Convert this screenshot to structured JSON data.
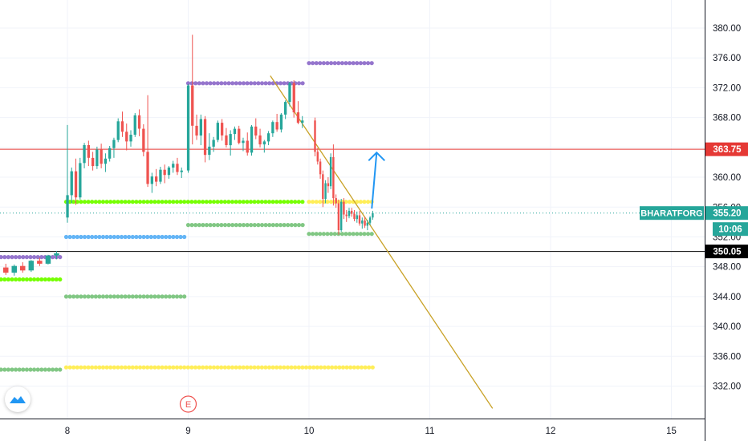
{
  "colors": {
    "up": "#26a69a",
    "down": "#ef5350",
    "grid": "#f0f3fa",
    "axis_text": "#131722",
    "purple": "#9575cd",
    "green_bright": "#76ff03",
    "green_dull": "#81c784",
    "blue": "#64b5f6",
    "yellow": "#ffee58",
    "trendline": "#c9a227",
    "resistance": "#e53935",
    "support": "#000000",
    "arrow": "#2196f3",
    "label_teal": "#26a69a",
    "earnings": "#ef5350"
  },
  "chart_data": {
    "type": "candlestick",
    "symbol": "BHARATFORG",
    "ylim": [
      329,
      383
    ],
    "y_ticks": [
      332,
      336,
      340,
      344,
      348,
      352,
      356,
      360,
      364,
      368,
      372,
      376,
      380
    ],
    "x_ticks": [
      "8",
      "9",
      "10",
      "11",
      "12",
      "15"
    ],
    "grid": true,
    "candles_session_7": [
      [
        346.6,
        347.4,
        345.8,
        346.9
      ],
      [
        346.9,
        347.2,
        345.6,
        345.9
      ],
      [
        345.9,
        347.0,
        345.4,
        346.7
      ],
      [
        346.7,
        347.3,
        346.1,
        346.3
      ],
      [
        346.3,
        347.5,
        345.9,
        347.2
      ],
      [
        347.2,
        347.6,
        346.0,
        346.4
      ],
      [
        346.4,
        348.1,
        346.2,
        347.9
      ],
      [
        347.9,
        348.4,
        346.9,
        347.2
      ],
      [
        347.2,
        348.3,
        346.8,
        348.1
      ],
      [
        348.1,
        348.6,
        347.2,
        347.5
      ],
      [
        347.5,
        348.9,
        347.3,
        348.8
      ],
      [
        348.8,
        349.2,
        348.1,
        348.4
      ],
      [
        348.4,
        349.6,
        348.3,
        349.5
      ],
      [
        349.5,
        350.1,
        349.0,
        349.8
      ]
    ],
    "candles_session_8": [
      [
        354.6,
        367.0,
        353.9,
        357.6
      ],
      [
        357.6,
        361.3,
        356.5,
        360.8
      ],
      [
        360.8,
        362.5,
        356.3,
        357.3
      ],
      [
        357.3,
        362.6,
        357.0,
        361.9
      ],
      [
        361.9,
        364.6,
        361.2,
        364.3
      ],
      [
        364.3,
        364.9,
        361.5,
        362.6
      ],
      [
        362.6,
        363.4,
        360.9,
        361.5
      ],
      [
        361.5,
        364.1,
        361.1,
        363.7
      ],
      [
        363.7,
        364.5,
        361.2,
        361.8
      ],
      [
        361.8,
        363.2,
        360.7,
        362.5
      ],
      [
        362.5,
        364.2,
        362.1,
        363.9
      ],
      [
        363.9,
        365.3,
        362.6,
        365.0
      ],
      [
        365.0,
        367.9,
        364.7,
        367.5
      ],
      [
        367.5,
        368.8,
        365.4,
        366.1
      ],
      [
        366.1,
        367.2,
        363.6,
        364.8
      ],
      [
        364.8,
        366.3,
        364.1,
        365.7
      ],
      [
        365.7,
        368.6,
        365.4,
        368.3
      ],
      [
        368.3,
        369.1,
        365.5,
        366.5
      ],
      [
        366.5,
        367.1,
        362.8,
        363.4
      ],
      [
        363.4,
        371.0,
        358.7,
        359.1
      ],
      [
        359.1,
        360.6,
        357.9,
        360.1
      ],
      [
        360.1,
        361.1,
        358.8,
        359.4
      ],
      [
        359.4,
        361.4,
        359.1,
        361.0
      ],
      [
        361.0,
        361.7,
        359.2,
        360.3
      ],
      [
        360.3,
        361.5,
        359.8,
        361.3
      ],
      [
        361.3,
        362.2,
        360.6,
        361.8
      ],
      [
        361.8,
        362.6,
        360.3,
        360.7
      ],
      [
        360.7,
        361.3,
        359.9,
        360.9
      ]
    ],
    "candles_session_9": [
      [
        360.9,
        372.5,
        360.6,
        372.3
      ],
      [
        372.3,
        379.1,
        364.4,
        366.9
      ],
      [
        366.9,
        368.4,
        365.0,
        365.6
      ],
      [
        365.6,
        368.4,
        364.3,
        367.8
      ],
      [
        367.8,
        368.2,
        362.0,
        363.0
      ],
      [
        363.0,
        365.9,
        362.3,
        364.1
      ],
      [
        364.1,
        365.4,
        363.4,
        365.0
      ],
      [
        365.0,
        367.6,
        364.7,
        367.3
      ],
      [
        367.3,
        367.8,
        364.9,
        365.6
      ],
      [
        365.6,
        366.6,
        364.0,
        364.3
      ],
      [
        364.3,
        366.3,
        362.9,
        365.8
      ],
      [
        365.8,
        366.8,
        365.0,
        366.5
      ],
      [
        366.5,
        366.9,
        364.4,
        364.6
      ],
      [
        364.6,
        365.3,
        363.5,
        364.9
      ],
      [
        364.9,
        366.0,
        362.9,
        363.3
      ],
      [
        363.3,
        367.0,
        362.9,
        366.8
      ],
      [
        366.8,
        367.9,
        365.1,
        365.6
      ],
      [
        365.6,
        366.5,
        364.0,
        364.4
      ],
      [
        364.4,
        365.0,
        363.3,
        364.8
      ],
      [
        364.8,
        366.2,
        364.3,
        365.9
      ],
      [
        365.9,
        367.6,
        365.4,
        367.4
      ],
      [
        367.4,
        368.5,
        366.1,
        366.4
      ],
      [
        366.4,
        368.6,
        366.0,
        368.4
      ],
      [
        368.4,
        370.3,
        367.8,
        370.1
      ],
      [
        370.1,
        372.8,
        369.5,
        372.6
      ],
      [
        372.6,
        373.0,
        368.0,
        368.7
      ],
      [
        368.7,
        370.2,
        367.1,
        367.3
      ],
      [
        367.3,
        368.2,
        366.6,
        367.6
      ]
    ],
    "candles_session_10": [
      [
        367.6,
        368.0,
        362.8,
        363.4
      ],
      [
        363.4,
        363.9,
        361.7,
        362.1
      ],
      [
        362.1,
        362.5,
        359.8,
        360.4
      ],
      [
        360.4,
        360.9,
        356.0,
        357.1
      ],
      [
        357.1,
        359.6,
        356.5,
        359.2
      ],
      [
        359.2,
        360.0,
        357.9,
        358.8
      ],
      [
        358.8,
        363.2,
        358.4,
        362.7
      ],
      [
        362.7,
        364.4,
        356.2,
        357.2
      ],
      [
        357.2,
        357.7,
        355.9,
        356.5
      ],
      [
        356.5,
        357.0,
        352.3,
        352.9
      ],
      [
        352.9,
        357.1,
        352.7,
        356.7
      ],
      [
        356.7,
        357.2,
        354.4,
        355.0
      ],
      [
        355.0,
        355.6,
        354.0,
        354.8
      ],
      [
        354.8,
        355.9,
        354.5,
        355.5
      ],
      [
        355.5,
        355.9,
        354.7,
        355.1
      ],
      [
        355.1,
        355.6,
        354.1,
        354.4
      ],
      [
        354.4,
        355.4,
        353.9,
        354.9
      ],
      [
        354.9,
        355.5,
        353.5,
        353.8
      ],
      [
        353.8,
        354.6,
        353.1,
        354.2
      ],
      [
        354.2,
        354.7,
        353.2,
        353.5
      ],
      [
        353.5,
        354.3,
        352.9,
        353.9
      ],
      [
        353.9,
        354.8,
        353.6,
        354.6
      ],
      [
        354.6,
        355.5,
        354.3,
        355.2
      ]
    ],
    "dotted_levels": [
      {
        "color": "purple",
        "value": 349.3,
        "x0": 7.45,
        "x1": 7.95
      },
      {
        "color": "green_bright",
        "value": 346.3,
        "x0": 7.45,
        "x1": 7.95
      },
      {
        "color": "green_dull",
        "value": 334.2,
        "x0": 7.45,
        "x1": 7.95
      },
      {
        "color": "green_bright",
        "value": 356.7,
        "x0": 7.99,
        "x1": 9.95
      },
      {
        "color": "blue",
        "value": 352.0,
        "x0": 7.99,
        "x1": 8.97
      },
      {
        "color": "green_dull",
        "value": 344.0,
        "x0": 7.99,
        "x1": 8.97
      },
      {
        "color": "yellow",
        "value": 334.5,
        "x0": 7.99,
        "x1": 10.55
      },
      {
        "color": "purple",
        "value": 372.6,
        "x0": 9.0,
        "x1": 9.97
      },
      {
        "color": "green_dull",
        "value": 353.6,
        "x0": 9.0,
        "x1": 9.97
      },
      {
        "color": "purple",
        "value": 375.3,
        "x0": 10.0,
        "x1": 10.55
      },
      {
        "color": "yellow",
        "value": 356.7,
        "x0": 10.0,
        "x1": 10.55
      },
      {
        "color": "green_dull",
        "value": 352.4,
        "x0": 10.0,
        "x1": 10.55
      }
    ],
    "trendline": {
      "x0": 9.68,
      "y0": 373.6,
      "x1": 11.52,
      "y1": 329
    },
    "horizontal_lines": [
      {
        "name": "resistance",
        "value": 363.75,
        "label": "363.75",
        "color": "resistance"
      },
      {
        "name": "support",
        "value": 350.05,
        "label": "350.05",
        "color": "support"
      }
    ],
    "arrow": {
      "x0": 10.52,
      "y0": 355.8,
      "x1": 10.56,
      "y1": 363.3
    },
    "last_price": {
      "value": 355.2,
      "label": "355.20",
      "countdown": "10:06"
    },
    "events": [
      {
        "x": 9.0,
        "label": "E"
      }
    ]
  }
}
